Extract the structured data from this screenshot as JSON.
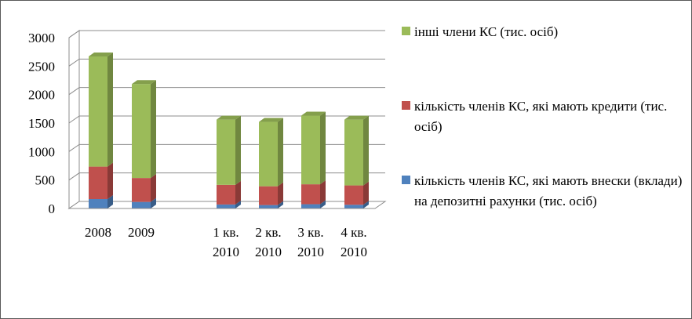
{
  "chart_data": {
    "type": "bar",
    "stacked": true,
    "three_d": true,
    "categories": [
      "2008",
      "2009",
      "",
      "1 кв. 2010",
      "2 кв. 2010",
      "3 кв. 2010",
      "4 кв. 2010"
    ],
    "category_lines": [
      [
        "2008"
      ],
      [
        "2009"
      ],
      [],
      [
        "1 кв.",
        "2010"
      ],
      [
        "2 кв.",
        "2010"
      ],
      [
        "3 кв.",
        "2010"
      ],
      [
        "4 кв.",
        "2010"
      ]
    ],
    "series": [
      {
        "name": "кількість членів КС, які мають внески (вклади) на депозитні рахунки (тис. осіб)",
        "color": "#4f81bd",
        "values": [
          165,
          115,
          null,
          70,
          60,
          75,
          65
        ]
      },
      {
        "name": "кількість членів КС, які мають кредити (тис. осіб)",
        "color": "#c0504d",
        "values": [
          570,
          420,
          null,
          345,
          330,
          350,
          340
        ]
      },
      {
        "name": "інші члени КС (тис. осіб)",
        "color": "#9bbb59",
        "values": [
          1935,
          1650,
          null,
          1145,
          1130,
          1205,
          1155
        ]
      }
    ],
    "ylim": [
      0,
      3000
    ],
    "yticks": [
      0,
      500,
      1000,
      1500,
      2000,
      2500,
      3000
    ],
    "grid": true,
    "legend_position": "right"
  }
}
